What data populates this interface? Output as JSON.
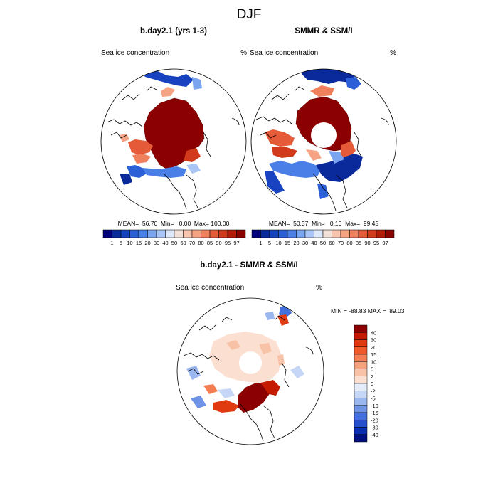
{
  "figure": {
    "title": "DJF"
  },
  "chart_data": [
    {
      "type": "heatmap",
      "projection": "north polar stereographic",
      "title": "b.day2.1 (yrs 1-3)",
      "left_label": "Sea ice concentration",
      "right_label": "%",
      "stats": {
        "mean": "56.70",
        "min": "0.00",
        "max": "100.00"
      },
      "stats_text": "MEAN=  56.70  Min=   0.00  Max= 100.00",
      "colorbar_levels": [
        "1",
        "5",
        "10",
        "15",
        "20",
        "30",
        "40",
        "50",
        "60",
        "70",
        "80",
        "85",
        "90",
        "95",
        "97"
      ],
      "colorbar_colors": [
        "#00007f",
        "#0a2a9c",
        "#1843c0",
        "#2a5fd8",
        "#4a7fe8",
        "#7aa4f0",
        "#a9c6f6",
        "#dde8fb",
        "#f3e0d6",
        "#f7c4ad",
        "#f5a383",
        "#f07f5c",
        "#e55a37",
        "#d23a1c",
        "#b41c08",
        "#8b0000"
      ]
    },
    {
      "type": "heatmap",
      "projection": "north polar stereographic",
      "title": "SMMR & SSM/I",
      "left_label": "Sea ice concentration",
      "right_label": "%",
      "stats": {
        "mean": "50.37",
        "min": "0.10",
        "max": "99.45"
      },
      "stats_text": "MEAN=  50.37  Min=   0.10  Max=  99.45",
      "colorbar_levels": [
        "1",
        "5",
        "10",
        "15",
        "20",
        "30",
        "40",
        "50",
        "60",
        "70",
        "80",
        "85",
        "90",
        "95",
        "97"
      ],
      "colorbar_colors": [
        "#00007f",
        "#0a2a9c",
        "#1843c0",
        "#2a5fd8",
        "#4a7fe8",
        "#7aa4f0",
        "#a9c6f6",
        "#dde8fb",
        "#f3e0d6",
        "#f7c4ad",
        "#f5a383",
        "#f07f5c",
        "#e55a37",
        "#d23a1c",
        "#b41c08",
        "#8b0000"
      ]
    },
    {
      "type": "heatmap",
      "projection": "north polar stereographic",
      "title": "b.day2.1 - SMMR & SSM/I",
      "left_label": "Sea ice concentration",
      "right_label": "%",
      "stats": {
        "min": "-88.83",
        "max": "89.03"
      },
      "stats_text": "MIN = -88.83 MAX =  89.03",
      "colorbar_levels": [
        "40",
        "30",
        "20",
        "15",
        "10",
        "5",
        "2",
        "0",
        "-2",
        "-5",
        "-10",
        "-15",
        "-20",
        "-30",
        "-40"
      ],
      "colorbar_colors": [
        "#8b0000",
        "#c41a00",
        "#e03a10",
        "#ee5a2a",
        "#f47e52",
        "#f7a07c",
        "#f8c2a6",
        "#fbe0d2",
        "#e4ecfa",
        "#c5d6f6",
        "#9bb7f0",
        "#6f93e6",
        "#4470dc",
        "#2450cc",
        "#0a2fb0",
        "#00107f"
      ]
    }
  ]
}
